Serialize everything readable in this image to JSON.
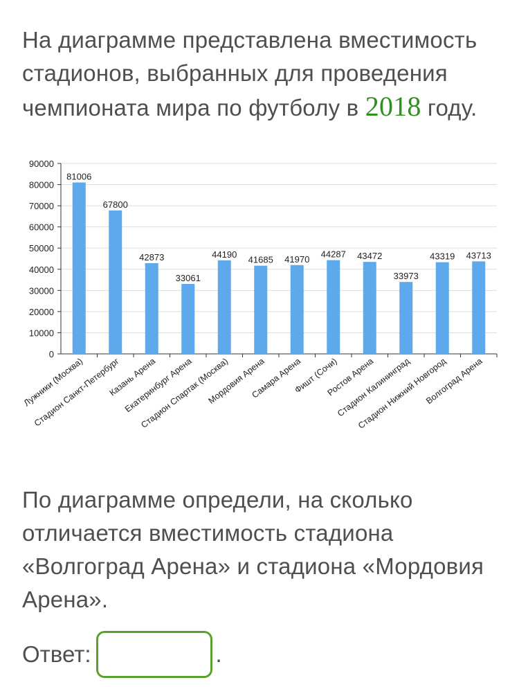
{
  "intro": {
    "text_before": "На диаграмме представлена вместимость стадионов, выбранных для проведения чемпионата мира по футболу в ",
    "year": "2018",
    "text_after": " году."
  },
  "question": "По диаграмме определи, на сколько отличается вместимость стадиона «Волгоград Арена» и стадиона «Мордовия Арена».",
  "answer": {
    "label": "Ответ:",
    "value": "",
    "suffix": "."
  },
  "colors": {
    "bar": "#5ea8ec",
    "accent": "#5aa02c",
    "year": "#2f8f1f"
  },
  "chart_data": {
    "type": "bar",
    "categories": [
      "Лужники (Москва)",
      "Стадион Санкт-Петербург",
      "Казань Арена",
      "Екатеринбург Арена",
      "Стадион Спартак (Москва)",
      "Мордовия Арена",
      "Самара Арена",
      "Фишт (Сочи)",
      "Ростов Арена",
      "Стадион Калининград",
      "Стадион Нижний Новгород",
      "Волгоград Арена"
    ],
    "values": [
      81006,
      67800,
      42873,
      33061,
      44190,
      41685,
      41970,
      44287,
      43472,
      33973,
      43319,
      43713
    ],
    "yticks": [
      0,
      10000,
      20000,
      30000,
      40000,
      50000,
      60000,
      70000,
      80000,
      90000
    ],
    "ylim": [
      0,
      90000
    ],
    "grid": true,
    "title": "",
    "xlabel": "",
    "ylabel": ""
  }
}
